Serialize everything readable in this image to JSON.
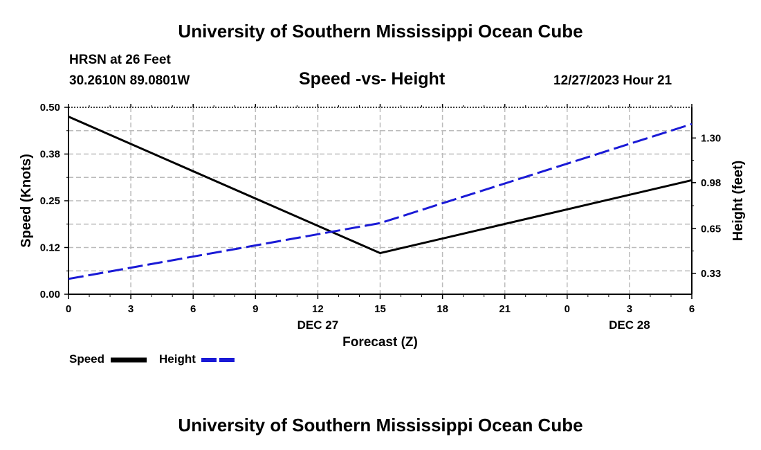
{
  "header": {
    "main_title": "University of Southern Mississippi Ocean Cube",
    "station": "HRSN at 26 Feet",
    "coords": "30.2610N  89.0801W",
    "chart_title": "Speed -vs- Height",
    "date": "12/27/2023 Hour 21"
  },
  "footer": {
    "main_title": "University of Southern Mississippi Ocean Cube"
  },
  "legend": {
    "speed_label": "Speed",
    "height_label": "Height"
  },
  "colors": {
    "speed": "#000000",
    "height": "#1a1ad6",
    "grid": "#bbbbbb"
  },
  "chart_data": {
    "type": "line",
    "title": "Speed -vs- Height",
    "xlabel": "Forecast (Z)",
    "ylabel": "Speed (Knots)",
    "y2label": "Height (feet)",
    "x": [
      0,
      15,
      30
    ],
    "x_tick_labels": [
      "0",
      "3",
      "6",
      "9",
      "12",
      "15",
      "18",
      "21",
      "0",
      "3",
      "6"
    ],
    "date_labels": [
      {
        "x": 12,
        "label": "DEC 27"
      },
      {
        "x": 27,
        "label": "DEC 28"
      }
    ],
    "xlim": [
      0,
      30
    ],
    "ylim": [
      0,
      0.5
    ],
    "y_ticks": [
      "0.00",
      "0.12",
      "0.25",
      "0.38",
      "0.50"
    ],
    "y2lim": [
      0.18,
      1.52
    ],
    "y2_ticks": [
      "0.33",
      "0.65",
      "0.98",
      "1.30"
    ],
    "series": [
      {
        "name": "Speed",
        "axis": "left",
        "style": "solid",
        "x": [
          0,
          15,
          30
        ],
        "values": [
          0.475,
          0.11,
          0.305
        ]
      },
      {
        "name": "Height",
        "axis": "right",
        "style": "dashed",
        "x": [
          0,
          15,
          30
        ],
        "values": [
          0.29,
          0.69,
          1.4
        ]
      }
    ]
  }
}
